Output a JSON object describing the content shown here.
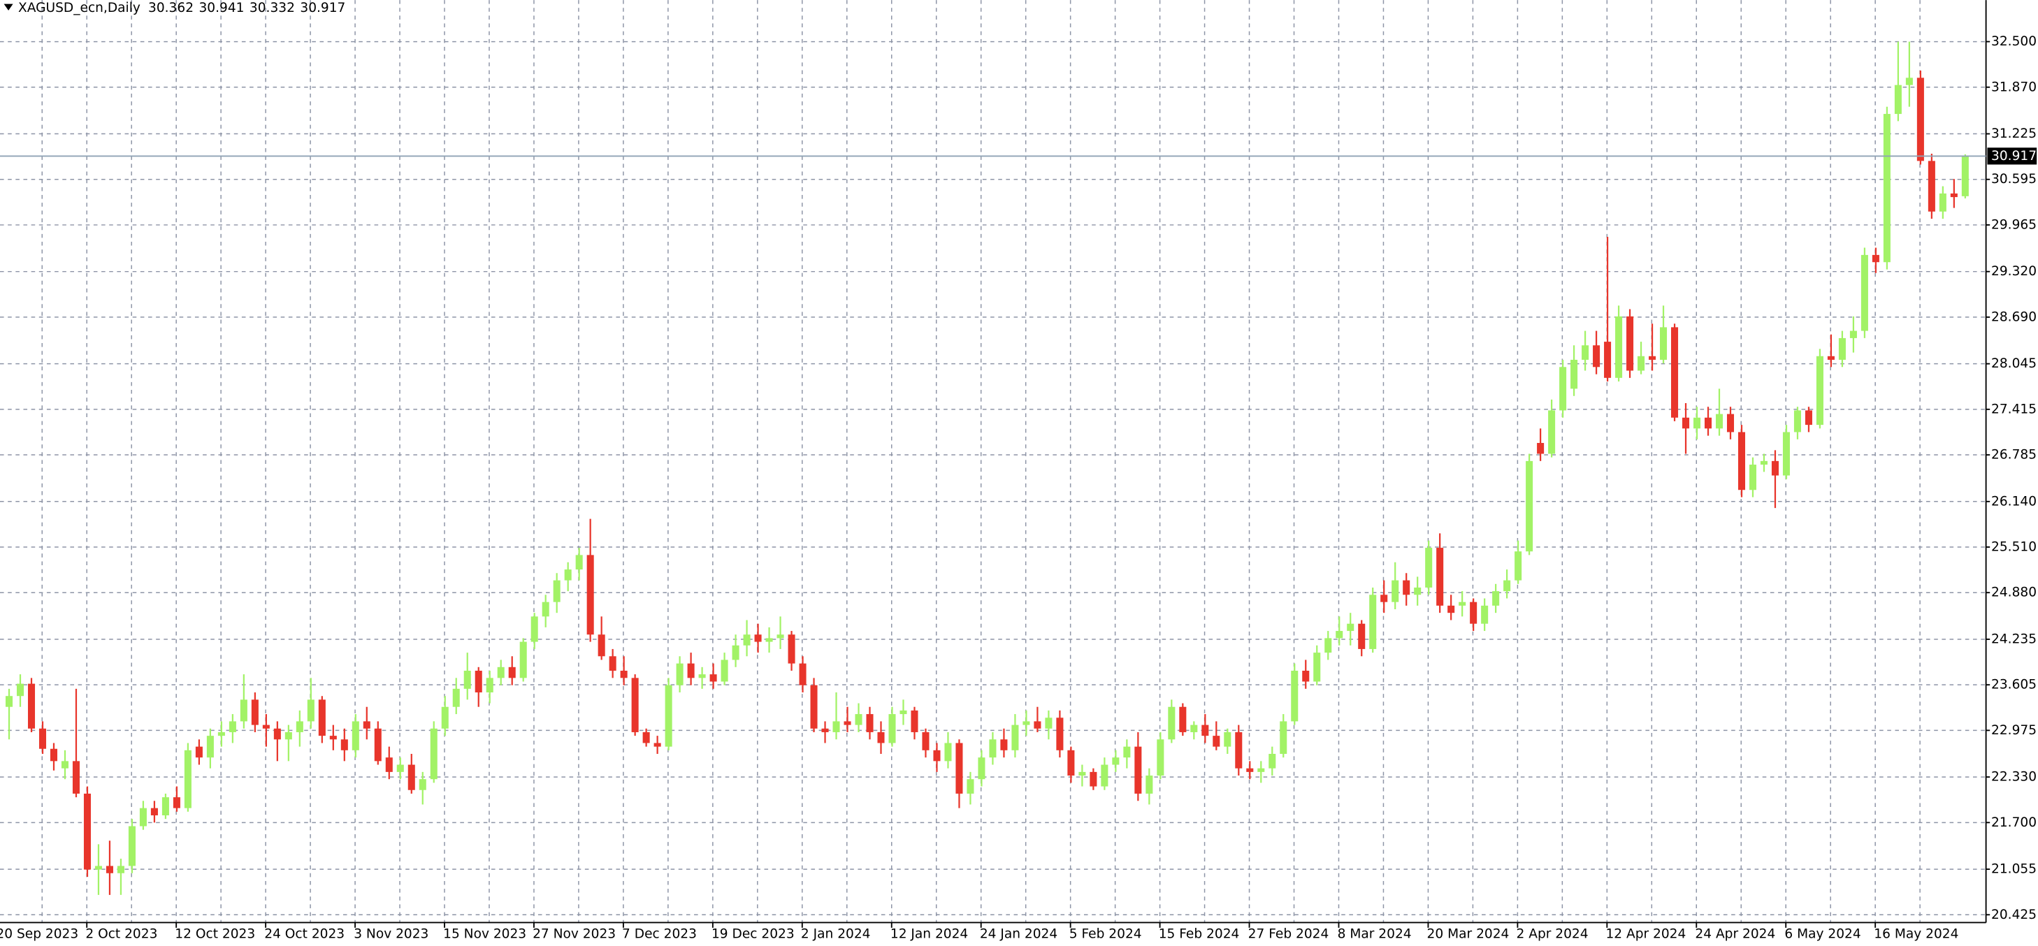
{
  "chart_data": {
    "type": "candlestick",
    "title": "XAGUSD_ecn,Daily",
    "up_color": "#a2f266",
    "down_color": "#e8352b",
    "grid": true,
    "ylim": [
      20.317,
      33.075
    ],
    "yticks": [
      {
        "value": 32.5,
        "label": "32.500"
      },
      {
        "value": 31.87,
        "label": "31.870"
      },
      31.225,
      30.595,
      29.965,
      {
        "value": 29.32,
        "label": "29.320"
      },
      {
        "value": 28.69,
        "label": "28.690"
      },
      28.045,
      27.415,
      26.785,
      {
        "value": 26.14,
        "label": "26.140"
      },
      {
        "value": 25.51,
        "label": "25.510"
      },
      {
        "value": 24.88,
        "label": "24.880"
      },
      24.235,
      23.605,
      22.975,
      {
        "value": 22.33,
        "label": "22.330"
      },
      {
        "value": 21.7,
        "label": "21.700"
      },
      21.055,
      20.425
    ],
    "categories": [
      "20 Sep 2023",
      null,
      null,
      null,
      null,
      null,
      null,
      null,
      "2 Oct 2023",
      null,
      null,
      null,
      null,
      null,
      null,
      null,
      "12 Oct 2023",
      null,
      null,
      null,
      null,
      null,
      null,
      null,
      "24 Oct 2023",
      null,
      null,
      null,
      null,
      null,
      null,
      null,
      "3 Nov 2023",
      null,
      null,
      null,
      null,
      null,
      null,
      null,
      "15 Nov 2023",
      null,
      null,
      null,
      null,
      null,
      null,
      null,
      "27 Nov 2023",
      null,
      null,
      null,
      null,
      null,
      null,
      null,
      "7 Dec 2023",
      null,
      null,
      null,
      null,
      null,
      null,
      null,
      "19 Dec 2023",
      null,
      null,
      null,
      null,
      null,
      null,
      null,
      "2 Jan 2024",
      null,
      null,
      null,
      null,
      null,
      null,
      null,
      "12 Jan 2024",
      null,
      null,
      null,
      null,
      null,
      null,
      null,
      "24 Jan 2024",
      null,
      null,
      null,
      null,
      null,
      null,
      null,
      "5 Feb 2024",
      null,
      null,
      null,
      null,
      null,
      null,
      null,
      "15 Feb 2024",
      null,
      null,
      null,
      null,
      null,
      null,
      null,
      "27 Feb 2024",
      null,
      null,
      null,
      null,
      null,
      null,
      null,
      "8 Mar 2024",
      null,
      null,
      null,
      null,
      null,
      null,
      null,
      "20 Mar 2024",
      null,
      null,
      null,
      null,
      null,
      null,
      null,
      "2 Apr 2024",
      null,
      null,
      null,
      null,
      null,
      null,
      null,
      "12 Apr 2024",
      null,
      null,
      null,
      null,
      null,
      null,
      null,
      "24 Apr 2024",
      null,
      null,
      null,
      null,
      null,
      null,
      null,
      "6 May 2024",
      null,
      null,
      null,
      null,
      null,
      null,
      null,
      "16 May 2024",
      null,
      null,
      null,
      null,
      null,
      null,
      null
    ],
    "open": [
      23.3,
      23.45,
      23.62,
      23.0,
      22.72,
      22.45,
      22.55,
      22.1,
      21.05,
      21.1,
      21.0,
      21.1,
      21.65,
      21.9,
      21.8,
      22.05,
      21.9,
      22.75,
      22.6,
      22.9,
      22.95,
      23.1,
      23.4,
      23.05,
      23.0,
      22.85,
      22.95,
      23.1,
      23.4,
      22.9,
      22.85,
      22.7,
      23.1,
      23.0,
      22.6,
      22.4,
      22.5,
      22.15,
      22.3,
      23.0,
      23.3,
      23.55,
      23.8,
      23.5,
      23.7,
      23.85,
      23.7,
      24.2,
      24.55,
      24.75,
      25.05,
      25.2,
      25.4,
      24.3,
      24.0,
      23.8,
      23.7,
      22.95,
      22.8,
      22.75,
      23.6,
      23.9,
      23.7,
      23.75,
      23.65,
      23.95,
      24.15,
      24.3,
      24.2,
      24.25,
      24.3,
      23.9,
      23.6,
      23.0,
      22.95,
      23.1,
      23.05,
      23.2,
      22.95,
      22.8,
      23.2,
      23.25,
      22.95,
      22.7,
      22.55,
      22.8,
      22.1,
      22.3,
      22.6,
      22.85,
      22.7,
      23.05,
      23.1,
      23.0,
      23.15,
      22.7,
      22.35,
      22.4,
      22.2,
      22.5,
      22.6,
      22.75,
      22.1,
      22.35,
      22.85,
      23.3,
      22.95,
      23.05,
      22.9,
      22.75,
      22.95,
      22.45,
      22.4,
      22.45,
      22.65,
      23.1,
      23.8,
      23.65,
      24.05,
      24.25,
      24.35,
      24.45,
      24.1,
      24.85,
      24.75,
      25.05,
      24.85,
      24.95,
      25.5,
      24.7,
      24.7,
      24.75,
      24.45,
      24.7,
      24.9,
      25.05,
      25.45,
      26.95,
      26.8,
      27.4,
      27.7,
      28.1,
      28.3,
      28.35,
      27.85,
      28.7,
      27.95,
      28.15,
      28.1,
      28.55,
      27.3,
      27.15,
      27.3,
      27.15,
      27.35,
      27.1,
      26.3,
      26.65,
      26.7,
      26.5,
      27.1,
      27.4,
      27.2,
      28.15,
      28.1,
      28.4,
      28.5,
      29.55,
      29.45,
      31.5,
      31.9,
      32.0,
      30.85,
      30.15,
      30.4,
      30.362
    ],
    "high": [
      23.55,
      23.75,
      23.7,
      23.1,
      22.8,
      22.7,
      23.55,
      22.2,
      21.4,
      21.45,
      21.2,
      21.75,
      22.0,
      22.0,
      22.1,
      22.2,
      22.8,
      22.85,
      23.0,
      23.1,
      23.2,
      23.75,
      23.5,
      23.2,
      23.1,
      23.05,
      23.25,
      23.7,
      23.45,
      23.05,
      23.0,
      23.2,
      23.3,
      23.1,
      22.75,
      22.6,
      22.65,
      22.4,
      23.1,
      23.45,
      23.7,
      24.05,
      23.85,
      23.8,
      23.95,
      24.0,
      24.25,
      24.6,
      24.85,
      25.15,
      25.3,
      25.5,
      25.9,
      24.55,
      24.1,
      24.0,
      23.75,
      23.0,
      22.9,
      23.7,
      24.0,
      24.05,
      23.85,
      23.9,
      24.05,
      24.3,
      24.5,
      24.45,
      24.4,
      24.55,
      24.35,
      24.0,
      23.7,
      23.1,
      23.5,
      23.3,
      23.35,
      23.3,
      23.1,
      23.3,
      23.4,
      23.3,
      23.0,
      22.8,
      22.95,
      22.85,
      22.4,
      22.7,
      22.95,
      23.0,
      23.2,
      23.25,
      23.3,
      23.25,
      23.25,
      22.75,
      22.5,
      22.45,
      22.6,
      22.7,
      22.85,
      22.95,
      22.45,
      22.95,
      23.4,
      23.35,
      23.1,
      23.2,
      23.1,
      23.0,
      23.05,
      22.55,
      22.55,
      22.75,
      23.2,
      23.9,
      23.95,
      24.15,
      24.35,
      24.55,
      24.6,
      24.5,
      24.95,
      25.05,
      25.3,
      25.15,
      25.1,
      25.6,
      25.7,
      24.85,
      24.9,
      24.8,
      24.8,
      25.0,
      25.2,
      25.6,
      26.8,
      27.15,
      27.55,
      28.1,
      28.3,
      28.5,
      28.5,
      29.8,
      28.85,
      28.8,
      28.35,
      28.6,
      28.85,
      28.6,
      27.5,
      27.45,
      27.45,
      27.7,
      27.45,
      27.2,
      26.75,
      26.8,
      26.85,
      27.2,
      27.45,
      27.45,
      28.25,
      28.45,
      28.5,
      28.7,
      29.65,
      29.65,
      31.6,
      32.5,
      32.5,
      32.1,
      30.95,
      30.5,
      30.6,
      30.941
    ],
    "low": [
      22.85,
      23.3,
      22.95,
      22.65,
      22.42,
      22.3,
      22.05,
      20.95,
      20.7,
      20.7,
      20.7,
      21.0,
      21.6,
      21.7,
      21.75,
      21.85,
      21.85,
      22.5,
      22.45,
      22.75,
      22.8,
      23.0,
      22.95,
      22.75,
      22.55,
      22.55,
      22.75,
      23.0,
      22.8,
      22.7,
      22.55,
      22.6,
      22.85,
      22.5,
      22.3,
      22.3,
      22.1,
      21.95,
      22.25,
      22.9,
      23.2,
      23.4,
      23.3,
      23.35,
      23.6,
      23.6,
      23.65,
      24.1,
      24.4,
      24.6,
      24.9,
      25.05,
      24.2,
      23.95,
      23.7,
      23.6,
      22.9,
      22.75,
      22.65,
      22.7,
      23.5,
      23.6,
      23.55,
      23.55,
      23.6,
      23.85,
      24.0,
      24.05,
      24.05,
      24.1,
      23.8,
      23.5,
      22.95,
      22.8,
      22.85,
      22.95,
      22.95,
      22.85,
      22.65,
      22.75,
      23.05,
      22.85,
      22.6,
      22.4,
      22.45,
      21.9,
      21.95,
      22.2,
      22.5,
      22.6,
      22.6,
      22.9,
      22.95,
      22.85,
      22.6,
      22.25,
      22.2,
      22.15,
      22.15,
      22.4,
      22.45,
      22.0,
      21.95,
      22.3,
      22.8,
      22.9,
      22.85,
      22.8,
      22.7,
      22.65,
      22.35,
      22.3,
      22.25,
      22.35,
      22.6,
      23.05,
      23.55,
      23.6,
      23.95,
      24.15,
      24.15,
      24.0,
      24.05,
      24.6,
      24.65,
      24.7,
      24.7,
      24.85,
      24.6,
      24.5,
      24.55,
      24.35,
      24.35,
      24.6,
      24.8,
      25.0,
      25.4,
      26.7,
      26.75,
      27.3,
      27.6,
      27.95,
      27.9,
      27.8,
      27.8,
      27.85,
      27.9,
      27.95,
      28.05,
      27.25,
      26.8,
      27.0,
      27.05,
      27.05,
      27.0,
      26.2,
      26.2,
      26.55,
      26.05,
      26.45,
      27.0,
      27.1,
      27.15,
      28.0,
      28.0,
      28.2,
      28.4,
      29.3,
      29.35,
      31.4,
      31.6,
      30.8,
      30.05,
      30.05,
      30.2,
      30.332
    ],
    "close": [
      23.45,
      23.62,
      23.0,
      22.72,
      22.55,
      22.55,
      22.1,
      21.05,
      21.1,
      21.0,
      21.1,
      21.65,
      21.9,
      21.8,
      22.05,
      21.9,
      22.7,
      22.6,
      22.9,
      22.95,
      23.1,
      23.4,
      23.05,
      23.0,
      22.85,
      22.95,
      23.1,
      23.4,
      22.9,
      22.85,
      22.7,
      23.1,
      23.0,
      22.55,
      22.4,
      22.5,
      22.15,
      22.3,
      23.0,
      23.3,
      23.55,
      23.8,
      23.5,
      23.7,
      23.85,
      23.7,
      24.2,
      24.55,
      24.75,
      25.05,
      25.2,
      25.4,
      24.3,
      24.0,
      23.8,
      23.7,
      22.95,
      22.8,
      22.75,
      23.6,
      23.9,
      23.7,
      23.75,
      23.65,
      23.95,
      24.15,
      24.3,
      24.2,
      24.25,
      24.3,
      23.9,
      23.6,
      23.0,
      22.95,
      23.1,
      23.05,
      23.2,
      22.95,
      22.8,
      23.2,
      23.25,
      22.95,
      22.7,
      22.55,
      22.8,
      22.1,
      22.3,
      22.6,
      22.85,
      22.7,
      23.05,
      23.1,
      23.0,
      23.15,
      22.7,
      22.35,
      22.4,
      22.2,
      22.5,
      22.6,
      22.75,
      22.1,
      22.35,
      22.85,
      23.3,
      22.95,
      23.05,
      22.9,
      22.75,
      22.95,
      22.45,
      22.4,
      22.45,
      22.65,
      23.1,
      23.8,
      23.65,
      24.05,
      24.25,
      24.35,
      24.45,
      24.1,
      24.85,
      24.75,
      25.05,
      24.85,
      24.95,
      25.5,
      24.7,
      24.6,
      24.75,
      24.45,
      24.7,
      24.9,
      25.05,
      25.45,
      26.7,
      26.8,
      27.4,
      28.0,
      28.1,
      28.3,
      28.0,
      27.85,
      28.7,
      27.95,
      28.15,
      28.1,
      28.55,
      27.3,
      27.15,
      27.3,
      27.15,
      27.35,
      27.1,
      26.3,
      26.65,
      26.7,
      26.5,
      27.1,
      27.4,
      27.2,
      28.15,
      28.1,
      28.4,
      28.5,
      29.55,
      29.45,
      31.5,
      31.9,
      32.0,
      30.85,
      30.15,
      30.4,
      30.35,
      30.917
    ]
  }
}
